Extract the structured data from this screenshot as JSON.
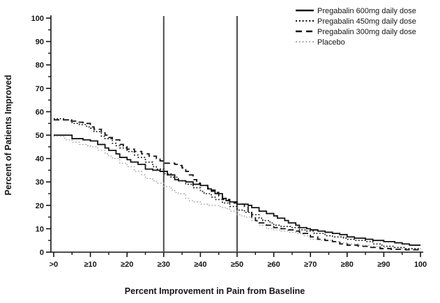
{
  "figure": {
    "background": "#ffffff",
    "axis_color": "#141414",
    "reference_line_color": "#4d4d4d"
  },
  "chart_data": {
    "type": "line",
    "subtype": "step-responder-curve",
    "title": "",
    "xlabel": "Percent Improvement in Pain from Baseline",
    "ylabel": "Percent of Patients Improved",
    "xlim": [
      0,
      100
    ],
    "ylim": [
      0,
      100
    ],
    "grid": false,
    "legend_position": "top-right",
    "x_tick_values": [
      0,
      10,
      20,
      30,
      40,
      50,
      60,
      70,
      80,
      90,
      100
    ],
    "x_tick_labels": [
      ">0",
      "≥10",
      "≥20",
      "≥30",
      "≥40",
      "≥50",
      "≥60",
      "≥70",
      "≥80",
      "≥90",
      "100"
    ],
    "y_tick_values": [
      0,
      10,
      20,
      30,
      40,
      50,
      60,
      70,
      80,
      90,
      100
    ],
    "y_tick_labels": [
      "0",
      "10",
      "20",
      "30",
      "40",
      "50",
      "60",
      "70",
      "80",
      "90",
      "100"
    ],
    "minor_tick_step": 5,
    "reference_lines_x": [
      30,
      50
    ],
    "series": [
      {
        "label": "Pregabalin 600mg daily dose",
        "line_style": "solid",
        "color": "#141414",
        "width": 1.8,
        "points": [
          [
            0,
            50
          ],
          [
            4,
            50
          ],
          [
            5,
            48.5
          ],
          [
            8,
            48
          ],
          [
            10,
            47.5
          ],
          [
            12,
            46
          ],
          [
            14,
            44.5
          ],
          [
            15,
            43.5
          ],
          [
            17,
            42
          ],
          [
            18,
            40.5
          ],
          [
            20,
            39.5
          ],
          [
            21,
            38.5
          ],
          [
            23,
            37.5
          ],
          [
            25,
            35.5
          ],
          [
            27,
            35
          ],
          [
            29,
            34.5
          ],
          [
            31,
            33
          ],
          [
            33,
            31
          ],
          [
            34,
            30.5
          ],
          [
            36,
            30
          ],
          [
            38,
            29
          ],
          [
            40,
            28.5
          ],
          [
            42,
            27
          ],
          [
            43,
            26
          ],
          [
            44,
            25
          ],
          [
            46,
            23
          ],
          [
            47,
            22
          ],
          [
            48,
            21.5
          ],
          [
            50,
            20.5
          ],
          [
            53,
            20
          ],
          [
            54,
            19
          ],
          [
            56,
            17.5
          ],
          [
            58,
            16.5
          ],
          [
            60,
            15.5
          ],
          [
            61,
            14.5
          ],
          [
            63,
            13.5
          ],
          [
            64,
            12.5
          ],
          [
            66,
            11.5
          ],
          [
            67,
            10.5
          ],
          [
            69,
            10
          ],
          [
            70,
            9.5
          ],
          [
            72,
            9
          ],
          [
            74,
            8.5
          ],
          [
            76,
            8
          ],
          [
            78,
            7.5
          ],
          [
            80,
            6.5
          ],
          [
            82,
            6
          ],
          [
            85,
            5.5
          ],
          [
            87,
            5
          ],
          [
            90,
            4.5
          ],
          [
            93,
            4
          ],
          [
            95,
            3.5
          ],
          [
            97,
            3
          ],
          [
            100,
            3
          ]
        ]
      },
      {
        "label": "Pregabalin 450mg daily dose",
        "line_style": "dotted",
        "color": "#141414",
        "width": 1.6,
        "points": [
          [
            0,
            57
          ],
          [
            3,
            56.5
          ],
          [
            5,
            55
          ],
          [
            7,
            54.5
          ],
          [
            9,
            53.5
          ],
          [
            10,
            53
          ],
          [
            11,
            51.5
          ],
          [
            13,
            49.5
          ],
          [
            14,
            48.5
          ],
          [
            16,
            46.5
          ],
          [
            17,
            45.5
          ],
          [
            18,
            44.5
          ],
          [
            20,
            43
          ],
          [
            22,
            41.5
          ],
          [
            23,
            40.5
          ],
          [
            25,
            38.5
          ],
          [
            27,
            36.5
          ],
          [
            28,
            35.5
          ],
          [
            30,
            33.5
          ],
          [
            32,
            32
          ],
          [
            34,
            30.5
          ],
          [
            36,
            29
          ],
          [
            38,
            27.5
          ],
          [
            40,
            26
          ],
          [
            41,
            25
          ],
          [
            43,
            23.5
          ],
          [
            44,
            22.5
          ],
          [
            46,
            21
          ],
          [
            48,
            19.5
          ],
          [
            50,
            18
          ],
          [
            52,
            17
          ],
          [
            54,
            16
          ],
          [
            56,
            14.5
          ],
          [
            57,
            13.5
          ],
          [
            59,
            12.5
          ],
          [
            60,
            11.5
          ],
          [
            62,
            11
          ],
          [
            65,
            10.5
          ],
          [
            67,
            9.5
          ],
          [
            69,
            9
          ],
          [
            71,
            8
          ],
          [
            74,
            7
          ],
          [
            76,
            6.5
          ],
          [
            79,
            6
          ],
          [
            80,
            5.5
          ],
          [
            82,
            5
          ],
          [
            85,
            4.5
          ],
          [
            87,
            3.5
          ],
          [
            89,
            3
          ],
          [
            90,
            2.5
          ],
          [
            93,
            2
          ],
          [
            96,
            1.5
          ],
          [
            100,
            1.5
          ]
        ]
      },
      {
        "label": "Pregabalin 300mg daily dose",
        "line_style": "dashed",
        "color": "#141414",
        "width": 1.8,
        "points": [
          [
            0,
            56.5
          ],
          [
            4,
            56
          ],
          [
            6,
            55.5
          ],
          [
            8,
            55
          ],
          [
            10,
            53.5
          ],
          [
            11,
            52.5
          ],
          [
            13,
            51
          ],
          [
            14,
            50
          ],
          [
            15,
            49
          ],
          [
            16,
            48
          ],
          [
            18,
            46
          ],
          [
            19,
            45
          ],
          [
            20,
            44
          ],
          [
            22,
            43
          ],
          [
            24,
            42
          ],
          [
            26,
            41
          ],
          [
            28,
            40
          ],
          [
            29,
            39
          ],
          [
            30,
            38
          ],
          [
            33,
            37.5
          ],
          [
            34,
            37
          ],
          [
            35,
            36
          ],
          [
            36,
            34.5
          ],
          [
            37,
            33
          ],
          [
            38,
            31
          ],
          [
            39,
            29.5
          ],
          [
            40,
            28.5
          ],
          [
            42,
            27.5
          ],
          [
            43,
            26.5
          ],
          [
            44,
            25.5
          ],
          [
            45,
            24
          ],
          [
            46,
            22.5
          ],
          [
            48,
            21
          ],
          [
            50,
            20.5
          ],
          [
            52,
            19.5
          ],
          [
            53,
            17
          ],
          [
            54,
            15
          ],
          [
            55,
            13.5
          ],
          [
            56,
            12.5
          ],
          [
            58,
            11.5
          ],
          [
            60,
            10.5
          ],
          [
            62,
            10
          ],
          [
            64,
            9.5
          ],
          [
            66,
            9
          ],
          [
            67,
            8.5
          ],
          [
            68,
            8
          ],
          [
            70,
            6.5
          ],
          [
            72,
            5.5
          ],
          [
            74,
            5
          ],
          [
            76,
            4.5
          ],
          [
            78,
            3.5
          ],
          [
            80,
            3
          ],
          [
            83,
            2.5
          ],
          [
            86,
            2
          ],
          [
            89,
            1.5
          ],
          [
            92,
            1.2
          ],
          [
            96,
            1
          ],
          [
            100,
            1
          ]
        ]
      },
      {
        "label": "Placebo",
        "line_style": "dotted",
        "color": "#ababab",
        "width": 1.4,
        "points": [
          [
            0,
            49.5
          ],
          [
            3,
            48
          ],
          [
            5,
            47
          ],
          [
            7,
            46
          ],
          [
            9,
            45.5
          ],
          [
            10,
            45
          ],
          [
            12,
            43.5
          ],
          [
            14,
            42
          ],
          [
            15,
            41
          ],
          [
            16,
            40
          ],
          [
            18,
            38
          ],
          [
            20,
            36.5
          ],
          [
            22,
            34.5
          ],
          [
            24,
            33
          ],
          [
            25,
            31.5
          ],
          [
            27,
            30.5
          ],
          [
            28,
            29.5
          ],
          [
            30,
            28
          ],
          [
            32,
            26.5
          ],
          [
            33,
            25.5
          ],
          [
            34,
            25
          ],
          [
            36,
            23
          ],
          [
            37,
            22
          ],
          [
            38,
            21.5
          ],
          [
            40,
            20.5
          ],
          [
            42,
            20
          ],
          [
            45,
            19.5
          ],
          [
            46,
            19
          ],
          [
            47,
            18.5
          ],
          [
            48,
            17.5
          ],
          [
            50,
            16
          ],
          [
            51,
            15.5
          ],
          [
            52,
            15
          ],
          [
            54,
            13.5
          ],
          [
            55,
            13
          ],
          [
            56,
            11.5
          ],
          [
            58,
            10
          ],
          [
            60,
            9.5
          ],
          [
            62,
            9
          ],
          [
            64,
            8.5
          ],
          [
            66,
            8
          ],
          [
            68,
            7
          ],
          [
            70,
            5.5
          ],
          [
            73,
            5
          ],
          [
            76,
            4.5
          ],
          [
            78,
            4
          ],
          [
            80,
            3.5
          ],
          [
            83,
            3
          ],
          [
            86,
            2.5
          ],
          [
            89,
            2
          ],
          [
            92,
            1.8
          ],
          [
            95,
            1.5
          ],
          [
            100,
            1
          ]
        ]
      }
    ]
  }
}
